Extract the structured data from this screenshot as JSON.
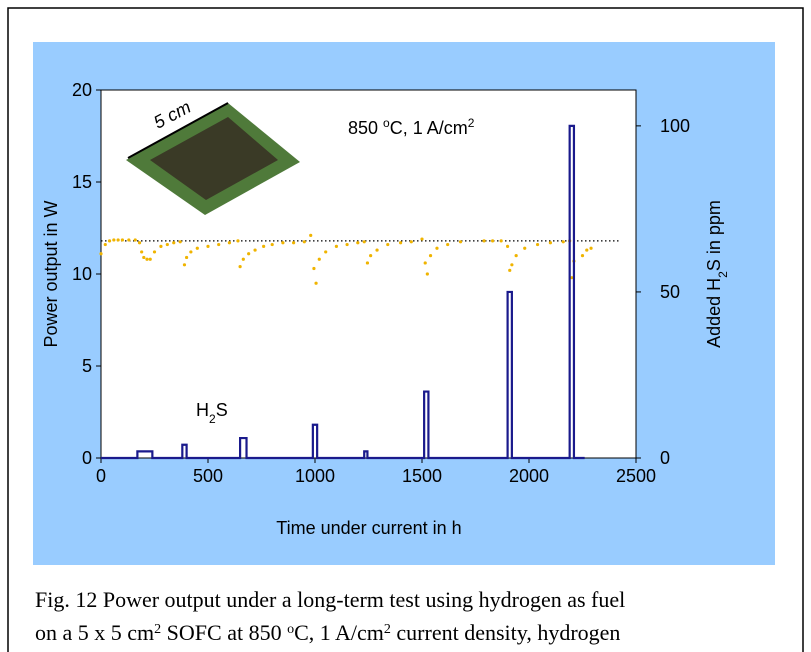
{
  "chart_data": {
    "type": "line",
    "xlim": [
      0,
      2500
    ],
    "xticks": [
      0,
      500,
      1000,
      1500,
      2000,
      2500
    ],
    "ylim": [
      0,
      20
    ],
    "yticks": [
      0,
      5,
      10,
      15,
      20
    ],
    "y2lim": [
      0,
      110.8
    ],
    "y2ticks": [
      0,
      50,
      100
    ],
    "x_label": "Time under current in h",
    "y_label": "Power output in W",
    "y2_label_parts": [
      "Added H",
      "2",
      "S in ppm"
    ],
    "annotation_parts": [
      "850 ",
      "o",
      "C, 1 A/cm",
      "2"
    ],
    "h2s_label_parts": [
      "H",
      "2",
      "S"
    ],
    "inset_label": "5 cm",
    "reference_line": {
      "y": 11.8,
      "x": [
        0,
        2420
      ]
    },
    "series": [
      {
        "color": "#f0b400",
        "marker": "dot",
        "x": [
          0,
          20,
          40,
          60,
          80,
          100,
          130,
          160,
          180,
          190,
          200,
          215,
          230,
          250,
          280,
          310,
          340,
          370,
          390,
          400,
          420,
          450,
          500,
          550,
          600,
          640,
          650,
          665,
          690,
          720,
          760,
          800,
          850,
          900,
          950,
          980,
          995,
          1005,
          1020,
          1050,
          1100,
          1150,
          1200,
          1230,
          1245,
          1260,
          1290,
          1340,
          1400,
          1450,
          1500,
          1515,
          1525,
          1540,
          1570,
          1620,
          1680,
          1790,
          1830,
          1870,
          1900,
          1910,
          1920,
          1940,
          1980,
          2040,
          2100,
          2160,
          2190,
          2200,
          2210,
          2250,
          2270,
          2290
        ],
        "values": [
          11.1,
          11.6,
          11.8,
          11.85,
          11.85,
          11.85,
          11.85,
          11.85,
          11.7,
          11.2,
          10.9,
          10.8,
          10.8,
          11.2,
          11.5,
          11.6,
          11.7,
          11.75,
          10.5,
          10.9,
          11.2,
          11.4,
          11.5,
          11.6,
          11.7,
          11.8,
          10.4,
          10.8,
          11.1,
          11.3,
          11.5,
          11.6,
          11.7,
          11.7,
          11.75,
          12.1,
          10.3,
          9.5,
          10.8,
          11.2,
          11.5,
          11.6,
          11.7,
          11.75,
          10.6,
          11.0,
          11.3,
          11.6,
          11.7,
          11.75,
          11.9,
          10.6,
          10.0,
          11.0,
          11.4,
          11.6,
          11.75,
          11.8,
          11.8,
          11.8,
          11.5,
          10.2,
          10.5,
          11.0,
          11.4,
          11.6,
          11.7,
          11.75,
          11.8,
          9.8,
          10.7,
          11.0,
          11.3,
          11.4
        ]
      },
      {
        "color": "#1a1a8c",
        "marker": "line",
        "axis": "y2",
        "x": [
          0,
          170,
          170,
          240,
          240,
          380,
          380,
          400,
          400,
          650,
          650,
          680,
          680,
          990,
          990,
          1010,
          1010,
          1230,
          1230,
          1245,
          1245,
          1510,
          1510,
          1530,
          1530,
          1900,
          1900,
          1920,
          1920,
          2190,
          2190,
          2210,
          2210,
          2260
        ],
        "values": [
          0,
          0,
          2,
          2,
          0,
          0,
          4,
          4,
          0,
          0,
          6,
          6,
          0,
          0,
          10,
          10,
          0,
          0,
          2,
          2,
          0,
          0,
          20,
          20,
          0,
          0,
          50,
          50,
          0,
          0,
          100,
          100,
          0,
          0
        ]
      }
    ]
  },
  "caption": {
    "line1": "Fig. 12 Power output under a long-term test using hydrogen as fuel",
    "line2_parts": [
      "on a 5 x 5 cm",
      "2",
      " SOFC at 850 ",
      "o",
      "C, 1 A/cm",
      "2",
      " current density, hydrogen"
    ]
  }
}
